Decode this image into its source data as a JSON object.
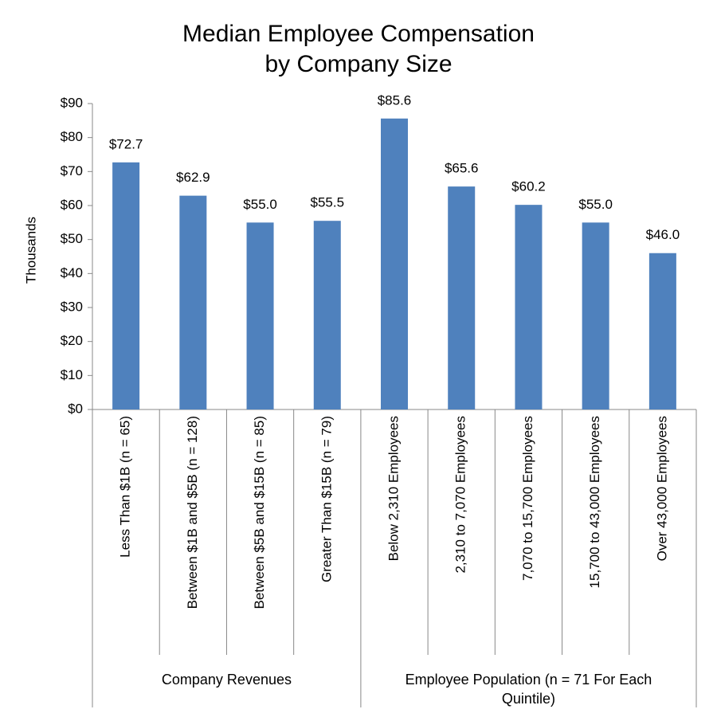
{
  "chart_data": {
    "type": "bar",
    "title": [
      "Median Employee Compensation",
      "by Company Size"
    ],
    "y_label": "Thousands",
    "color": "#4f81bd",
    "ylim": [
      0,
      90
    ],
    "yticks": [
      {
        "value": 0,
        "label": "$0"
      },
      {
        "value": 10,
        "label": "$10"
      },
      {
        "value": 20,
        "label": "$20"
      },
      {
        "value": 30,
        "label": "$30"
      },
      {
        "value": 40,
        "label": "$40"
      },
      {
        "value": 50,
        "label": "$50"
      },
      {
        "value": 60,
        "label": "$60"
      },
      {
        "value": 70,
        "label": "$70"
      },
      {
        "value": 80,
        "label": "$80"
      },
      {
        "value": 90,
        "label": "$90"
      }
    ],
    "groups": [
      {
        "name": "Company Revenues",
        "categories": [
          "Less Than $1B (n = 65)",
          "Between $1B and $5B (n = 128)",
          "Between $5B and $15B (n = 85)",
          "Greater Than $15B (n = 79)"
        ],
        "values": [
          72.7,
          62.9,
          55.0,
          55.5
        ],
        "value_labels": [
          "$72.7",
          "$62.9",
          "$55.0",
          "$55.5"
        ]
      },
      {
        "name": "Employee Population (n = 71 For Each Quintile)",
        "categories": [
          "Below 2,310 Employees",
          "2,310 to 7,070 Employees",
          "7,070 to 15,700 Employees",
          "15,700 to 43,000 Employees",
          "Over 43,000 Employees"
        ],
        "values": [
          85.6,
          65.6,
          60.2,
          55.0,
          46.0
        ],
        "value_labels": [
          "$85.6",
          "$65.6",
          "$60.2",
          "$55.0",
          "$46.0"
        ]
      }
    ]
  }
}
